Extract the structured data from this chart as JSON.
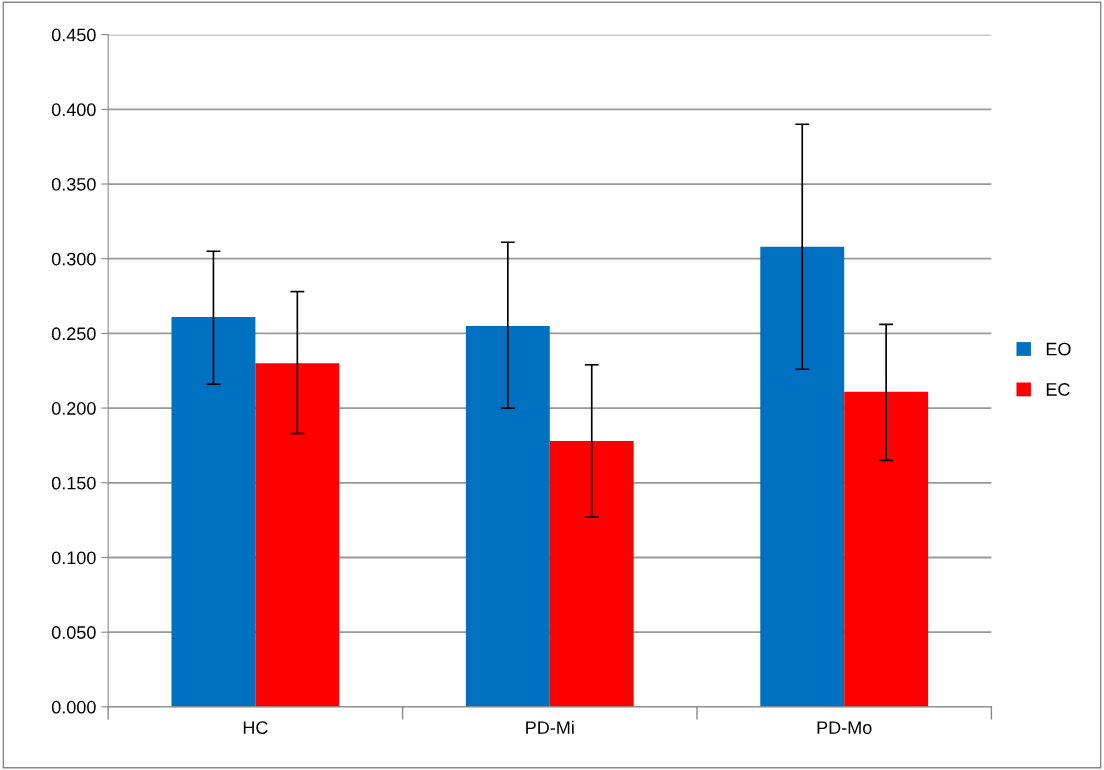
{
  "chart_data": {
    "type": "bar",
    "categories": [
      "HC",
      "PD-Mi",
      "PD-Mo"
    ],
    "series": [
      {
        "name": "EO",
        "color": "#0070c0",
        "values": [
          0.261,
          0.255,
          0.308
        ],
        "errors": [
          [
            0.216,
            0.305
          ],
          [
            0.2,
            0.311
          ],
          [
            0.226,
            0.39
          ]
        ]
      },
      {
        "name": "EC",
        "color": "#ff0000",
        "values": [
          0.23,
          0.178,
          0.211
        ],
        "errors": [
          [
            0.183,
            0.278
          ],
          [
            0.127,
            0.229
          ],
          [
            0.165,
            0.256
          ]
        ]
      }
    ],
    "ylim": [
      0,
      0.45
    ],
    "yticks": [
      {
        "value": 0,
        "label": "0.000"
      },
      {
        "value": 0.05,
        "label": "0.050"
      },
      {
        "value": 0.1,
        "label": "0.100"
      },
      {
        "value": 0.15,
        "label": "0.150"
      },
      {
        "value": 0.2,
        "label": "0.200"
      },
      {
        "value": 0.25,
        "label": "0.250"
      },
      {
        "value": 0.3,
        "label": "0.300"
      },
      {
        "value": 0.35,
        "label": "0.350"
      },
      {
        "value": 0.4,
        "label": "0.400"
      },
      {
        "value": 0.45,
        "label": "0.450"
      }
    ],
    "grid": "y",
    "legend": "right"
  }
}
